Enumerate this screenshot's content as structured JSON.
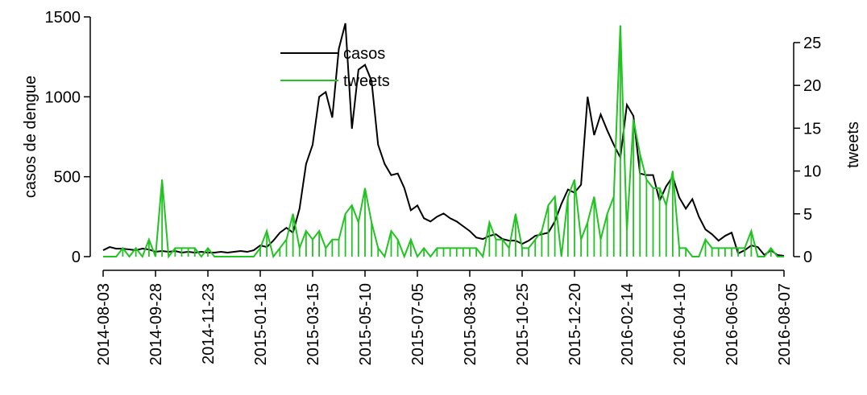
{
  "chart_data": {
    "type": "line",
    "ylabel": "casos de dengue",
    "y2label": "tweets",
    "categories": [
      "2014-08-03",
      null,
      null,
      null,
      null,
      null,
      null,
      null,
      "2014-09-28",
      null,
      null,
      null,
      null,
      null,
      null,
      null,
      "2014-11-23",
      null,
      null,
      null,
      null,
      null,
      null,
      null,
      "2015-01-18",
      null,
      null,
      null,
      null,
      null,
      null,
      null,
      "2015-03-15",
      null,
      null,
      null,
      null,
      null,
      null,
      null,
      "2015-05-10",
      null,
      null,
      null,
      null,
      null,
      null,
      null,
      "2015-07-05",
      null,
      null,
      null,
      null,
      null,
      null,
      null,
      "2015-08-30",
      null,
      null,
      null,
      null,
      null,
      null,
      null,
      "2015-10-25",
      null,
      null,
      null,
      null,
      null,
      null,
      null,
      "2015-12-20",
      null,
      null,
      null,
      null,
      null,
      null,
      null,
      "2016-02-14",
      null,
      null,
      null,
      null,
      null,
      null,
      null,
      "2016-04-10",
      null,
      null,
      null,
      null,
      null,
      null,
      null,
      "2016-06-05",
      null,
      null,
      null,
      null,
      null,
      null,
      null,
      "2016-08-07"
    ],
    "series": [
      {
        "name": "casos",
        "color": "#000000",
        "axis": "y",
        "values": [
          40,
          60,
          50,
          50,
          45,
          40,
          50,
          45,
          30,
          35,
          30,
          35,
          25,
          30,
          25,
          30,
          25,
          25,
          30,
          25,
          30,
          35,
          30,
          40,
          70,
          60,
          100,
          150,
          180,
          150,
          300,
          580,
          700,
          1000,
          1030,
          870,
          1300,
          1460,
          800,
          1170,
          1200,
          1100,
          700,
          580,
          510,
          520,
          430,
          290,
          320,
          240,
          220,
          250,
          270,
          240,
          220,
          190,
          160,
          120,
          110,
          130,
          140,
          110,
          100,
          100,
          80,
          100,
          130,
          140,
          150,
          220,
          330,
          420,
          400,
          450,
          1000,
          760,
          890,
          790,
          700,
          620,
          950,
          880,
          520,
          510,
          510,
          350,
          440,
          500,
          370,
          300,
          360,
          250,
          170,
          140,
          100,
          130,
          150,
          20,
          40,
          70,
          60,
          10,
          40,
          10,
          5
        ]
      },
      {
        "name": "tweets",
        "color": "#22c322",
        "axis": "y2",
        "values": [
          0,
          0,
          0,
          1,
          0,
          1,
          0,
          2,
          0,
          9,
          0,
          1,
          1,
          1,
          1,
          0,
          1,
          0,
          0,
          0,
          0,
          0,
          0,
          0,
          1,
          3,
          0,
          1,
          2,
          5,
          1,
          3,
          2,
          3,
          1,
          2,
          2,
          5,
          6,
          4,
          8,
          4,
          1,
          0,
          3,
          2,
          0,
          2,
          0,
          1,
          0,
          1,
          1,
          1,
          1,
          1,
          1,
          1,
          0,
          4,
          2,
          2,
          1,
          5,
          1,
          1,
          2,
          3,
          6,
          7,
          0,
          7,
          9,
          2,
          4,
          7,
          2,
          5,
          7,
          27,
          3,
          16,
          12,
          9,
          8,
          8,
          6,
          10,
          1,
          1,
          0,
          0,
          2,
          1,
          1,
          1,
          1,
          1,
          1,
          3,
          0,
          0,
          1,
          0,
          0
        ]
      }
    ],
    "ylim": [
      0,
      1500
    ],
    "yticks": [
      0,
      500,
      1000,
      1500
    ],
    "y2lim": [
      0,
      28
    ],
    "y2ticks": [
      0,
      5,
      10,
      15,
      20,
      25
    ],
    "legend": "top-center"
  }
}
